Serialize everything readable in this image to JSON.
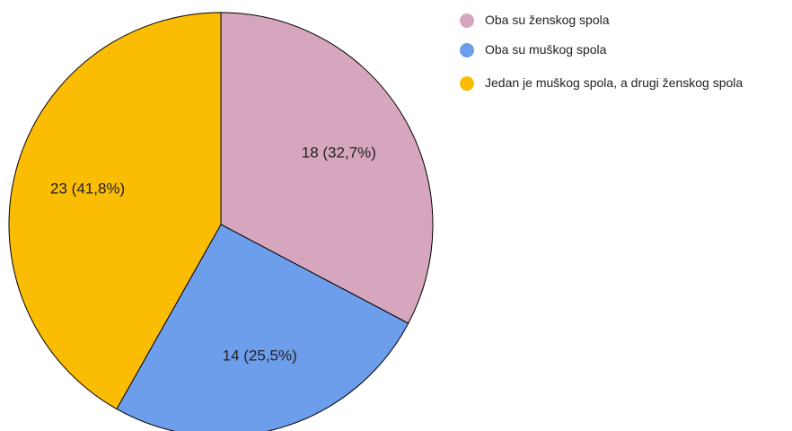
{
  "chart_data": {
    "type": "pie",
    "categories": [
      "Oba su ženskog spola",
      "Oba su muškog spola",
      "Jedan je muškog spola, a drugi ženskog spola"
    ],
    "values": [
      18,
      14,
      23
    ],
    "value_labels": [
      "18 (32,7%)",
      "14 (25,5%)",
      "23 (41,8%)"
    ],
    "colors": [
      "#d5a6bd",
      "#6d9eeb",
      "#fbbc04"
    ],
    "legend": "right"
  }
}
